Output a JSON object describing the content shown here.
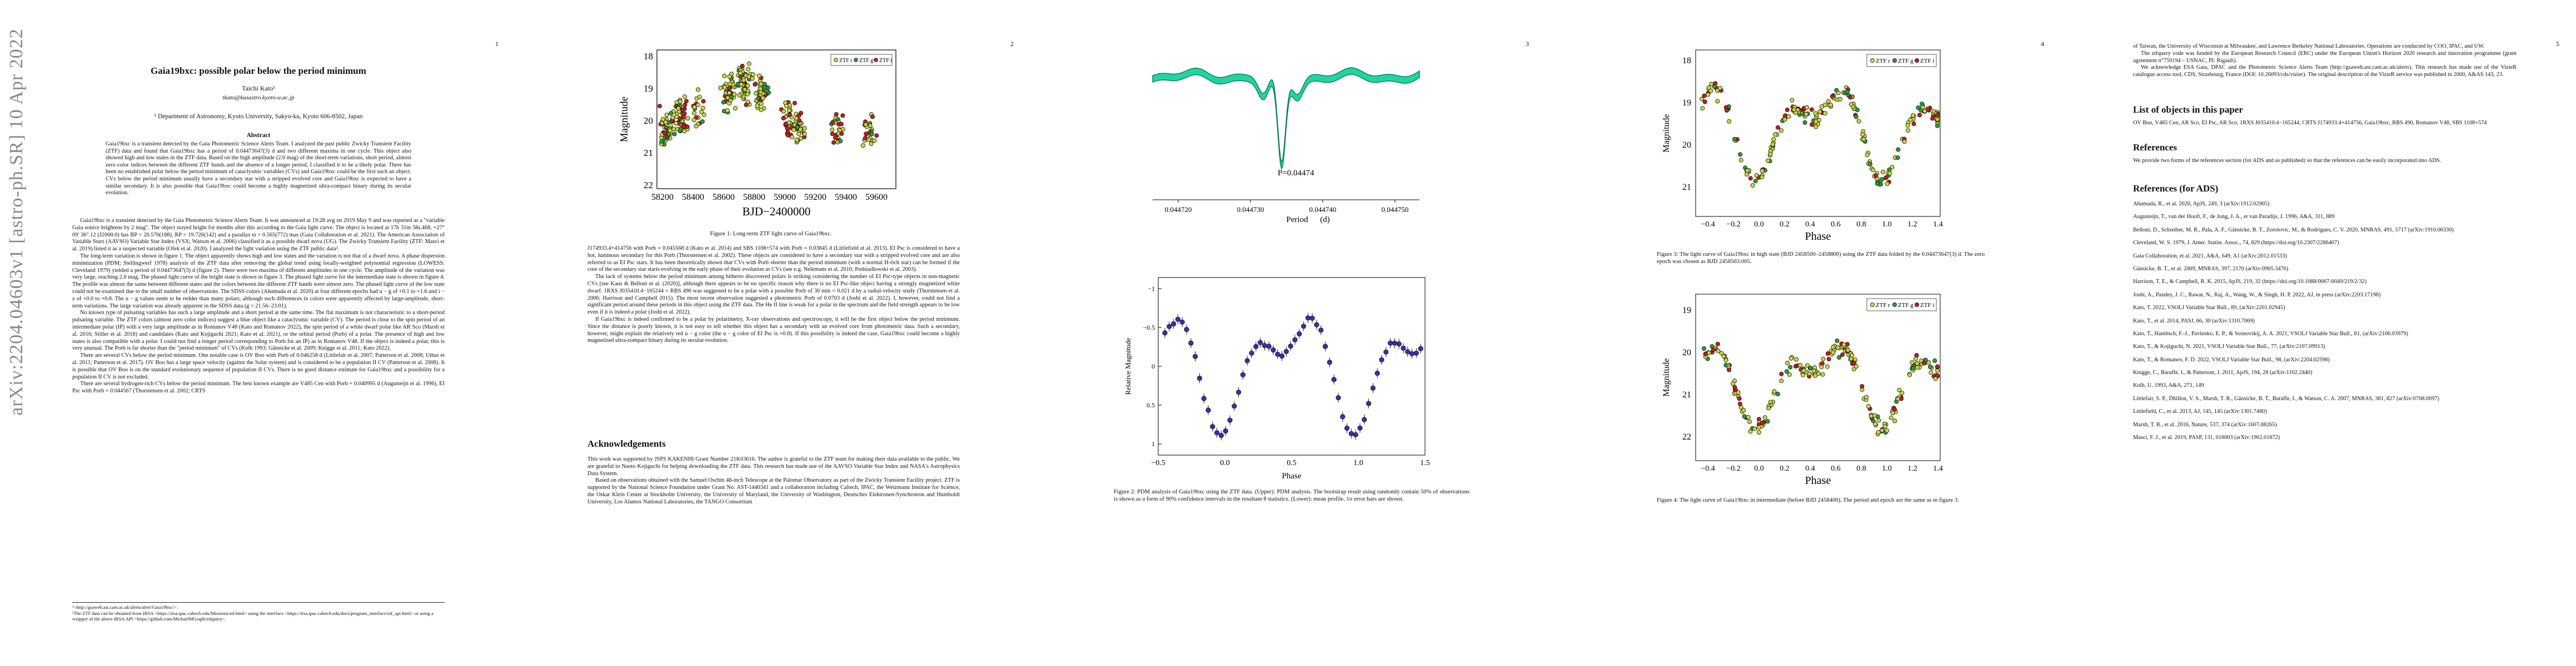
{
  "arxiv_id": "arXiv:2204.04603v1  [astro-ph.SR]  10 Apr 2022",
  "page_numbers": [
    "1",
    "2",
    "3",
    "4",
    "5"
  ],
  "page1": {
    "title": "Gaia19bxc: possible polar below the period minimum",
    "author": "Taichi Kato¹",
    "email": "tkato@kusastro.kyoto-u.ac.jp",
    "affiliation": "¹ Department of Astronomy, Kyoto University, Sakyo-ku, Kyoto 606-8502, Japan",
    "abstract_heading": "Abstract",
    "abstract": "Gaia19bxc is a transient detected by the Gaia Photometric Science Alerts Team. I analyzed the past public Zwicky Transient Facility (ZTF) data and found that Gaia19bxc has a period of 0.04473647(3) d and two different maxima in one cycle. This object also showed high and low states in the ZTF data. Based on the high amplitude (2.0 mag) of the short-term variations, short period, almost zero color indices between the different ZTF bands and the absence of a longer period, I classified it to be a likely polar. There has been no established polar below the period minimum of cataclysmic variables (CVs) and Gaia19bxc could be the first such an object. CVs below the period minimum usually have a secondary star with a stripped evolved core and Gaia19bxc is expected to have a similar secondary. It is also possible that Gaia19bxc could become a highly magnetized ultra-compact binary during its secular evolution.",
    "paragraphs": [
      "Gaia19bxc is a transient detected by the Gaia Photometric Science Alerts Team. It was announced at 19:28 avg on 2019 May 9 and was reported as a \"variable Gaia source brightens by 2 mag\". The object stayed bright for months after this according to the Gaia light curve. The object is located at 17h 31m 58s.468, +27° 09' 36\".12 (J2000.0) has BP = 20.570(188), RP = 19.726(142) and a parallax ϖ = 0.565(772) mas (Gaia Collaboration et al. 2021). The American Association of Variable Stars (AAVSO) Variable Star Index (VSX; Watson et al. 2006) classified it as a possible dwarf nova (UG). The Zwicky Transient Facility (ZTF: Masci et al. 2019) listed it as a suspected variable (Ofek et al. 2020). I analyzed the light variation using the ZTF public data².",
      "The long-term variation is shown in figure 1. The object apparently shows high and low states and the variation is not that of a dwarf nova. A phase dispersion minimization (PDM; Stellingwerf 1978) analysis of the ZTF data after removing the global trend using locally-weighted polynomial regression (LOWESS: Cleveland 1979) yielded a period of 0.04473647(3) d (figure 2). There were two maxima of different amplitudes in one cycle. The amplitude of the variation was very large, reaching 2.0 mag. The phased light curve of the bright state is shown in figure 3. The phased light curve for the intermediate state is shown in figure 4. The profile was almost the same between different states and the colors between the different ZTF bands were almost zero. The phased light curve of the low state could not be examined due to the small number of observations. The SDSS colors (Ahumada et al. 2020) at four different epochs had u − g of +0.1 to +1.6 and i − z of +0.0 to +0.8. The u − g values seem to be redder than many polars, although such differences in colors were apparently affected by large-amplitude, short-term variations. The large variation was already apparent in the SDSS data (g = 21.56–23.01).",
      "No known type of pulsating variables has such a large amplitude and a short period at the same time. The flat maximum is not characteristic to a short-period pulsating variable. The ZTF colors (almost zero color indices) suggest a blue object like a cataclysmic variable (CV). The period is close to the spin period of an intermediate polar (IP) with a very large amplitude as in Romanov V48 (Kato and Romanov 2022), the spin period of a white dwarf polar like AR Sco (Marsh et al. 2016; Stiller et al. 2018) and candidates (Kato and Kojiguchi 2021; Kato et al. 2021), or the orbital period (Porb) of a polar. The presence of high and low states is also compatible with a polar. I could not find a longer period corresponding to Porb for an IP) as in Romanov V48. If the object is indeed a polar, this is very unusual. The Porb is far shorter than the \"period minimum\" of CVs (Kolb 1993; Gänsicke et al. 2009; Knigge et al. 2011; Kato 2022).",
      "There are several CVs below the period minimum. One notable case is OV Boo with Porb of 0.046258 d (Littlefair et al. 2007; Patterson et al. 2008; Uthas et al. 2011; Patterson et al. 2017). OV Boo has a large space velocity (against the Solar system) and is considered to be a population II CV (Patterson et al. 2008). It is possible that OV Boo is on the standard evolutionary sequence of population II CVs. There is no good distance estimate for Gaia19bxc and a possibility for a population II CV is not excluded.",
      "There are several hydrogen-rich CVs below the period minimum. The best known example are V485 Cen with Porb = 0.040995 d (Augusteijn et al. 1996), EI Psc with Porb = 0.044567 (Thorstensen et al. 2002; CRTS"
    ],
    "footnotes": [
      "¹<http://gsaweb.ast.cam.ac.uk/alerts/alert/Gaia19bxc/>.",
      "²The ZTF data can be obtained from IRSA <https://irsa.ipac.caltech.edu/Missions/ztf.html> using the interface <https://irsa.ipac.caltech.edu/docs/program_interface/ztf_api.html> or using a wrapper of the above IRSA API <https://github.com/MichaelMGraph/ztfquery>."
    ]
  },
  "page2": {
    "fig1": {
      "ylabel": "Magnitude",
      "xlabel": "BJD−2400000",
      "yticks": [
        "18",
        "19",
        "20",
        "21",
        "22"
      ],
      "xticks": [
        "58200",
        "58400",
        "58600",
        "58800",
        "59000",
        "59200",
        "59400",
        "59600"
      ],
      "legend": [
        "ZTF r",
        "ZTF g",
        "ZTF i"
      ],
      "caption": "Figure 1: Long-term ZTF light curve of Gaia19bxc."
    },
    "paragraphs": [
      "J174933.4+414756 with Porb = 0.045568 d (Kato et al. 2014) and SBS 1108+574 with Porb = 0.03845 d (Littlefield et al. 2013). EI Psc is considered to have a hot, luminous secondary for this Porb (Thorstensen et al. 2002). These objects are considered to have a secondary star with a stripped evolved core and are also referred to as EI Psc stars. It has been theoretically shown that CVs with Porb shorter than the period minimum (with a normal H-rich star) can be formed if the core of the secondary star starts evolving in the early phase of their evolution as CVs (see e.g. Nelemans et al. 2010; Podsiadlowski et al. 2003).",
      "The lack of systems below the period minimum among hitherto discovered polars is striking considering the number of EI Psc-type objects in non-magnetic CVs [see Kaus & Belloni et al. (2020)], although there appears to be no specific reason why there is no EI Psc-like object having a strongly magnetized white dwarf. 1RXS J035410.4−165244 = RBS 490 was suggested to be a polar with a possible Porb of 30 min = 0.021 d by a radial-velocity study (Thorstensen et al. 2006; Harrison and Campbell 2015). The most recent observation suggested a photometric Porb of 0.0703 d (Joshi et al. 2022). I, however, could not find a significant period around these periods in this object using the ZTF data. The He II line is weak for a polar in the spectrum and the field strength appears to be low even if it is indeed a polar (Joshi et al. 2022).",
      "If Gaia19bxc is indeed confirmed to be a polar by polarimetry, X-ray observations and spectroscopy, it will be the first object below the period minimum. Since the distance is poorly known, it is not easy to tell whether this object has a secondary with an evolved core from photometric data. Such a secondary, however, might explain the relatively red u − g color (the u − g color of EI Psc is +0.8). If this possibility is indeed the case, Gaia19bxc could become a highly magnetized ultra-compact binary during its secular evolution."
    ],
    "ack_heading": "Acknowledgements",
    "ack_paragraphs": [
      "This work was supported by JSPS KAKENHI Grant Number 21K03616. The author is grateful to the ZTF team for making their data available to the public. We are grateful to Naoto Kojiguchi for helping downloading the ZTF data. This research has made use of the AAVSO Variable Star Index and NASA's Astrophysics Data System.",
      "Based on observations obtained with the Samuel Oschin 48-inch Telescope at the Palomar Observatory as part of the Zwicky Transient Facility project. ZTF is supported by the National Science Foundation under Grant No. AST-1440341 and a collaboration including Caltech, IPAC, the Weizmann Institute for Science, the Oskar Klein Center at Stockholm University, the University of Maryland, the University of Washington, Deutsches Elektronen-Synchrotron and Humboldt University, Los Alamos National Laboratories, the TANGO Consortium"
    ]
  },
  "page3": {
    "fig2_top": {
      "xticks": [
        "0.044720",
        "0.044730",
        "0.044740",
        "0.044750"
      ],
      "xlabel": "Period",
      "xunit": "(d)",
      "annotation": "P=0.04474"
    },
    "fig2_bottom": {
      "ylabel": "Relative Magnitude",
      "yticks": [
        "−1",
        "−0.5",
        "0",
        "0.5",
        "1"
      ],
      "xticks": [
        "−0.5",
        "0.0",
        "0.5",
        "1.0",
        "1.5"
      ],
      "xlabel": "Phase"
    },
    "caption": "Figure 2: PDM analysis of Gaia19bxc using the ZTF data. (Upper): PDM analysis. The bootstrap result using randomly contain 50% of observations is shown as a form of 90% confidence intervals in the resultant θ statistics. (Lower): mean profile. 1σ error bars are shown."
  },
  "page4": {
    "fig3": {
      "ylabel": "Magnitude",
      "yticks": [
        "18",
        "19",
        "20",
        "21"
      ],
      "xticks": [
        "−0.4",
        "−0.2",
        "0.0",
        "0.2",
        "0.4",
        "0.6",
        "0.8",
        "1.0",
        "1.2",
        "1.4"
      ],
      "xlabel": "Phase",
      "legend": [
        "ZTF r",
        "ZTF g",
        "ZTF i"
      ],
      "caption": "Figure 3: The light curve of Gaia19bxc in high state (BJD 2458500–2458800) using the ZTF data folded by the 0.04473647(3) d. The zero epoch was chosen as BJD 2458563.005."
    },
    "fig4": {
      "ylabel": "Magnitude",
      "yticks": [
        "19",
        "20",
        "21",
        "22"
      ],
      "xticks": [
        "−0.4",
        "−0.2",
        "0.0",
        "0.2",
        "0.4",
        "0.6",
        "0.8",
        "1.0",
        "1.2",
        "1.4"
      ],
      "xlabel": "Phase",
      "legend": [
        "ZTF r",
        "ZTF g",
        "ZTF i"
      ],
      "caption": "Figure 4: The light curve of Gaia19bxc in intermediate (before BJD 2458400). The period and epoch are the same as in figure 3."
    }
  },
  "page5": {
    "top_paragraphs": [
      "of Taiwan, the University of Wisconsin at Milwaukee, and Lawrence Berkeley National Laboratories. Operations are conducted by COO, IPAC, and UW.",
      "The ztfquery code was funded by the European Research Council (ERC) under the European Union's Horizon 2020 research and innovation programme (grant agreement n°759194 – USNAC, PI: Rigault).",
      "We acknowledge ESA Gaia, DPAC and the Photometric Science Alerts Team (http://gsaweb.ast.cam.ac.uk/alerts). This research has made use of the VizieR catalogue access tool, CDS, Strasbourg, France (DOI: 10.26093/cds/vizier). The original description of the VizieR service was published in 2000, A&AS 143, 23."
    ],
    "list_heading": "List of objects in this paper",
    "list_text": "OV Boo, V485 Cen, AR Sco, EI Psc, AR Sco, 1RXS J035410.4−165244, CRTS J174933.4+414756, Gaia19bxc, RBS 490, Romanov V48, SBS 1108+574",
    "refs_heading": "References",
    "refs_intro": "We provide two forms of the references section (for ADS and as published) so that the references can be easily incorporated into ADS.",
    "refs_ads_heading": "References (for ADS)",
    "references": [
      "Ahumada, R., et al. 2020, ApJS, 249, 3 (arXiv:1912.02905)",
      "Augusteijn, T., van der Hooft, F., de Jong, J. A., et van Paradijs, J. 1996, A&A, 311, 889",
      "Belloni, D., Schreiber, M. R., Pala, A. F., Gänsicke, B. T., Zorotovic, M., & Rodrigues, C. V. 2020, MNRAS, 491, 5717 (arXiv:1910.06330)",
      "Cleveland, W. S. 1979, J. Amer. Statist. Assoc., 74, 829 (https://doi.org/10.2307/2286407)",
      "Gaia Collaboration, et al. 2021, A&A, 649, A1 (arXiv:2012.01533)",
      "Gänsicke, B. T., et al. 2009, MNRAS, 397, 2170 (arXiv:0905.3476)",
      "Harrison, T. E., & Campbell, R. K. 2015, ApJS, 219, 32 (https://doi.org/10.1088/0067-0049/219/2/32)",
      "Joshi, A., Pandey, J. C., Rawat, N., Raj, A., Wang, W., & Singh, H. P. 2022, AJ, in press (arXiv:2203.17198)",
      "Kato, T. 2022, VSOLJ Variable Star Bull., 89, (arXiv:2201.02945)",
      "Kato, T., et al. 2014, PASJ, 66, 30 (arXiv:1310.7069)",
      "Kato, T., Hambsch, F.-J., Pavlenko, E. P., & Sosnovskij, A. A. 2021, VSOLJ Variable Star Bull., 81, (arXiv:2106.03979)",
      "Kato, T., & Kojiguchi, N. 2021, VSOLJ Variable Star Bull., 77, (arXiv:2107.09913)",
      "Kato, T., & Romanov, F. D. 2022, VSOLJ Variable Star Bull., 98, (arXiv:2204.02598)",
      "Knigge, C., Baraffe, I., & Patterson, J. 2011, ApJS, 194, 28 (arXiv:1102.2440)",
      "Kolb, U. 1993, A&A, 271, 149",
      "Littlefair, S. P., Dhillon, V. S., Marsh, T. R., Gänsicke, B. T., Baraffe, I., & Watson, C. A. 2007, MNRAS, 381, 827 (arXiv:0708.0097)",
      "Littlefield, C., et al. 2013, AJ, 145, 145 (arXiv:1301.7480)",
      "Marsh, T. R., et al. 2016, Nature, 537, 374 (arXiv:1607.08265)",
      "Masci, F. J., et al. 2019, PASP, 131, 018003 (arXiv:1902.01872)"
    ]
  }
}
